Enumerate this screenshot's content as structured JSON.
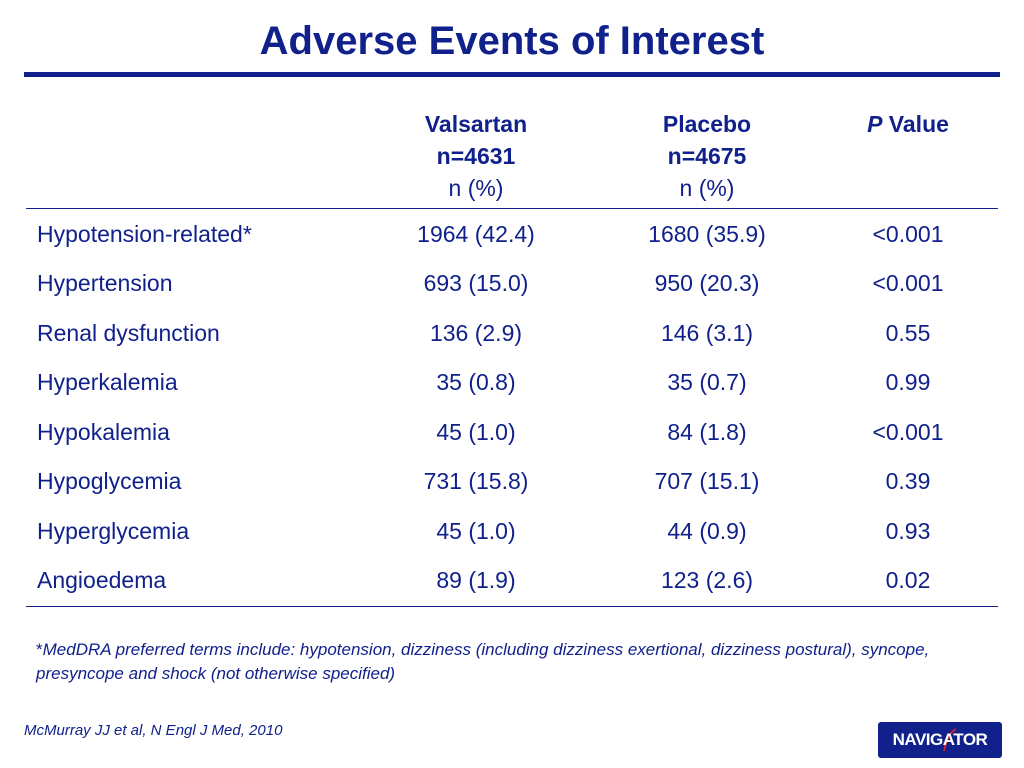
{
  "title": "Adverse Events of Interest",
  "table": {
    "columns": [
      {
        "line1": "",
        "line2": "",
        "line3": ""
      },
      {
        "line1": "Valsartan",
        "line2": "n=4631",
        "line3": "n (%)"
      },
      {
        "line1": "Placebo",
        "line2": "n=4675",
        "line3": "n (%)"
      }
    ],
    "pvalue_header": {
      "italic": "P",
      "rest": " Value"
    },
    "rows": [
      {
        "label": "Hypotension-related*",
        "valsartan": "1964 (42.4)",
        "placebo": "1680 (35.9)",
        "p": "<0.001"
      },
      {
        "label": "Hypertension",
        "valsartan": "693 (15.0)",
        "placebo": "950 (20.3)",
        "p": "<0.001"
      },
      {
        "label": "Renal dysfunction",
        "valsartan": "136 (2.9)",
        "placebo": "146 (3.1)",
        "p": "0.55"
      },
      {
        "label": "Hyperkalemia",
        "valsartan": "35 (0.8)",
        "placebo": "35 (0.7)",
        "p": "0.99"
      },
      {
        "label": "Hypokalemia",
        "valsartan": "45 (1.0)",
        "placebo": "84 (1.8)",
        "p": "<0.001"
      },
      {
        "label": "Hypoglycemia",
        "valsartan": "731 (15.8)",
        "placebo": "707 (15.1)",
        "p": "0.39"
      },
      {
        "label": "Hyperglycemia",
        "valsartan": "45 (1.0)",
        "placebo": "44 (0.9)",
        "p": "0.93"
      },
      {
        "label": "Angioedema",
        "valsartan": "89 (1.9)",
        "placebo": "123 (2.6)",
        "p": "0.02"
      }
    ]
  },
  "footnote": {
    "marker": "*",
    "text": "MedDRA preferred terms include: hypotension, dizziness (including dizziness exertional, dizziness postural), syncope, presyncope and shock (not otherwise specified)"
  },
  "citation": "McMurray JJ et al, N Engl J Med, 2010",
  "logo": {
    "text": "NAVIGATOR"
  },
  "colors": {
    "primary": "#10218b",
    "accent": "#d3202f",
    "background": "#ffffff"
  }
}
